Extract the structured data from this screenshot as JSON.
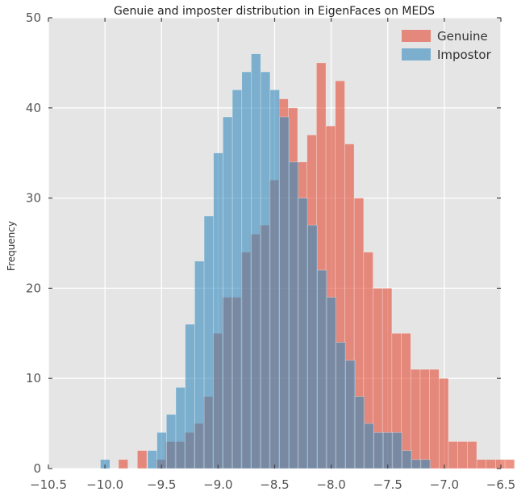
{
  "chart_data": {
    "type": "bar",
    "title": "Genuie and imposter distribution in EigenFaces on MEDS",
    "xlabel": "",
    "ylabel": "Frequency",
    "xlim": [
      -10.5,
      -6.5
    ],
    "ylim": [
      0,
      50
    ],
    "xticks": [
      -10.5,
      -10.0,
      -9.5,
      -9.0,
      -8.5,
      -8.0,
      -7.5,
      -7.0,
      -6.5
    ],
    "xtick_labels": [
      "−10.5",
      "−10.0",
      "−9.5",
      "−9.0",
      "−8.5",
      "−8.0",
      "−7.5",
      "−7.0",
      "−6.5"
    ],
    "yticks": [
      0,
      10,
      20,
      30,
      40,
      50
    ],
    "ytick_labels": [
      "0",
      "10",
      "20",
      "30",
      "40",
      "50"
    ],
    "grid": true,
    "legend_position": "top-right",
    "colors": {
      "background": "#e5e5e5",
      "genuine": "#e24a33",
      "impostor": "#348abd",
      "overlap": "#8e8ca3"
    },
    "series": [
      {
        "name": "Genuine",
        "color": "#e24a33",
        "bin_start": -9.88,
        "bin_width": 0.08333,
        "values": [
          1,
          0,
          2,
          0,
          1,
          3,
          3,
          4,
          5,
          8,
          15,
          19,
          19,
          24,
          26,
          27,
          32,
          41,
          40,
          34,
          37,
          45,
          38,
          43,
          36,
          30,
          24,
          20,
          20,
          15,
          15,
          11,
          11,
          11,
          10,
          3,
          3,
          3,
          1,
          1,
          1,
          1,
          0,
          0,
          0,
          1,
          1
        ]
      },
      {
        "name": "Impostor",
        "color": "#348abd",
        "bin_start": -10.04,
        "bin_width": 0.08333,
        "values": [
          1,
          0,
          0,
          0,
          0,
          2,
          4,
          6,
          9,
          16,
          23,
          28,
          35,
          39,
          42,
          44,
          46,
          44,
          42,
          39,
          34,
          30,
          27,
          22,
          19,
          14,
          12,
          8,
          5,
          4,
          4,
          4,
          2,
          1,
          1,
          0,
          0,
          0,
          0,
          0,
          0,
          0,
          0,
          0,
          0,
          1
        ]
      }
    ]
  }
}
